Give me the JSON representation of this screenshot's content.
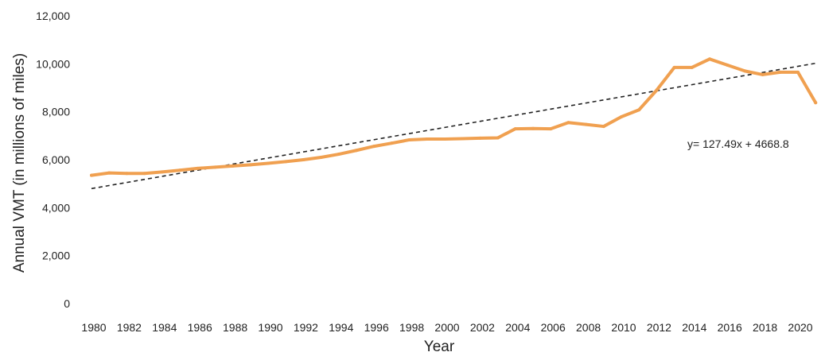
{
  "chart_data": {
    "type": "line",
    "title": "",
    "xlabel": "Year",
    "ylabel": "Annual VMT (in millions of miles)",
    "ylim": [
      0,
      12000
    ],
    "xlim": [
      1980,
      2021
    ],
    "grid": false,
    "legend": "none",
    "x_tick_labels": [
      "1980",
      "1982",
      "1984",
      "1986",
      "1988",
      "1990",
      "1992",
      "1994",
      "1996",
      "1998",
      "2000",
      "2002",
      "2004",
      "2006",
      "2008",
      "2010",
      "2012",
      "2014",
      "2016",
      "2018",
      "2020"
    ],
    "y_tick_labels": [
      "0",
      "2,000",
      "4,000",
      "6,000",
      "8,000",
      "10,000",
      "12,000"
    ],
    "y_tick_values": [
      0,
      2000,
      4000,
      6000,
      8000,
      10000,
      12000
    ],
    "series": [
      {
        "color": "#f0a050",
        "x": [
          1980,
          1981,
          1982,
          1983,
          1984,
          1985,
          1986,
          1987,
          1988,
          1989,
          1990,
          1991,
          1992,
          1993,
          1994,
          1995,
          1996,
          1997,
          1998,
          1999,
          2000,
          2001,
          2002,
          2003,
          2004,
          2005,
          2006,
          2007,
          2008,
          2009,
          2010,
          2011,
          2012,
          2013,
          2014,
          2015,
          2016,
          2017,
          2018,
          2019,
          2020,
          2021
        ],
        "values": [
          5350,
          5450,
          5430,
          5430,
          5490,
          5560,
          5640,
          5690,
          5740,
          5790,
          5850,
          5920,
          6000,
          6100,
          6230,
          6390,
          6560,
          6690,
          6830,
          6860,
          6860,
          6880,
          6900,
          6910,
          7290,
          7300,
          7290,
          7550,
          7470,
          7390,
          7790,
          8080,
          8900,
          9850,
          9850,
          10200,
          9950,
          9700,
          9550,
          9650,
          9650,
          8380
        ]
      }
    ],
    "trendline": {
      "equation": "y= 127.49x + 4668.8",
      "slope": 127.49,
      "intercept": 4668.8,
      "color": "#222222",
      "style": "dashed"
    }
  }
}
